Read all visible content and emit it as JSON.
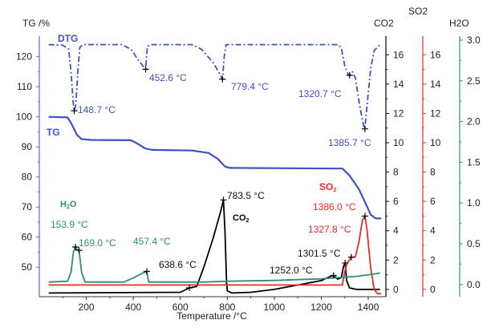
{
  "chart_data": {
    "type": "line",
    "xlabel": "Temperature /°C",
    "ylabel": "TG /%",
    "xlim": [
      0,
      1475
    ],
    "xticks": [
      200,
      400,
      600,
      800,
      1000,
      1200,
      1400
    ],
    "axes": {
      "tg": {
        "label": "TG /%",
        "ylim": [
          40.2,
          125.5
        ],
        "ticks": [
          50,
          60,
          70,
          80,
          90,
          100,
          110,
          120
        ],
        "color": "#3f51c4"
      },
      "co2": {
        "label": "CO2",
        "ylim": [
          -0.5,
          17
        ],
        "ticks": [
          0,
          2,
          4,
          6,
          8,
          10,
          12,
          14,
          16
        ],
        "color": "#000000"
      },
      "so2": {
        "label": "SO2",
        "ylim": [
          -0.5,
          17
        ],
        "ticks": [
          0,
          2,
          4,
          6,
          8,
          10,
          12,
          14,
          16
        ],
        "color": "#ee2a2a"
      },
      "h2o": {
        "label": "H2O",
        "ylim": [
          -0.15,
          3.0
        ],
        "ticks": [
          0,
          0.5,
          1.0,
          1.5,
          2.0,
          2.5,
          3.0
        ],
        "color": "#2e8c7c"
      }
    },
    "series": [
      {
        "name": "DTG",
        "axis": "tg",
        "color": "#3f51c4",
        "style": "dashdot",
        "points": [
          [
            40,
            124
          ],
          [
            100,
            123.8
          ],
          [
            125,
            122.5
          ],
          [
            135,
            115
          ],
          [
            145,
            104
          ],
          [
            149,
            102
          ],
          [
            155,
            104
          ],
          [
            165,
            116
          ],
          [
            172,
            123
          ],
          [
            185,
            124
          ],
          [
            350,
            124
          ],
          [
            390,
            122.5
          ],
          [
            420,
            119
          ],
          [
            445,
            116.5
          ],
          [
            452.6,
            115.8
          ],
          [
            460,
            123.5
          ],
          [
            475,
            124
          ],
          [
            650,
            124
          ],
          [
            690,
            122.5
          ],
          [
            740,
            118
          ],
          [
            770,
            114
          ],
          [
            779.4,
            112.5
          ],
          [
            787,
            120
          ],
          [
            795,
            124
          ],
          [
            1270,
            124
          ],
          [
            1285,
            123
          ],
          [
            1300,
            117
          ],
          [
            1315,
            114
          ],
          [
            1320.7,
            113.8
          ],
          [
            1333,
            115
          ],
          [
            1345,
            113
          ],
          [
            1365,
            103
          ],
          [
            1380,
            97
          ],
          [
            1385.7,
            96
          ],
          [
            1395,
            104
          ],
          [
            1410,
            116
          ],
          [
            1425,
            122
          ],
          [
            1450,
            124
          ]
        ]
      },
      {
        "name": "TG",
        "axis": "tg",
        "color": "#3f51c4",
        "style": "solid",
        "points": [
          [
            40,
            100
          ],
          [
            120,
            99.8
          ],
          [
            135,
            98
          ],
          [
            160,
            94
          ],
          [
            180,
            92.6
          ],
          [
            220,
            92.3
          ],
          [
            390,
            92.2
          ],
          [
            420,
            91
          ],
          [
            450,
            89.5
          ],
          [
            480,
            89
          ],
          [
            650,
            88.8
          ],
          [
            720,
            88
          ],
          [
            760,
            86
          ],
          [
            790,
            83.5
          ],
          [
            810,
            83
          ],
          [
            1290,
            82.8
          ],
          [
            1320,
            80.5
          ],
          [
            1360,
            76
          ],
          [
            1390,
            71
          ],
          [
            1410,
            67.5
          ],
          [
            1430,
            66.3
          ],
          [
            1455,
            66.2
          ]
        ]
      },
      {
        "name": "CO2",
        "axis": "co2",
        "color": "#000000",
        "style": "solid",
        "points": [
          [
            40,
            -0.25
          ],
          [
            600,
            -0.2
          ],
          [
            638.6,
            0.1
          ],
          [
            670,
            0.2
          ],
          [
            700,
            1.5
          ],
          [
            740,
            3.5
          ],
          [
            770,
            5.2
          ],
          [
            783.5,
            6.1
          ],
          [
            790,
            4
          ],
          [
            797,
            0.5
          ],
          [
            800,
            -0.1
          ],
          [
            820,
            -0.25
          ],
          [
            900,
            -0.2
          ],
          [
            1000,
            0
          ],
          [
            1100,
            0.3
          ],
          [
            1200,
            0.6
          ],
          [
            1240,
            0.9
          ],
          [
            1252,
            0.95
          ],
          [
            1270,
            0.7
          ],
          [
            1285,
            0.8
          ],
          [
            1295,
            1.6
          ],
          [
            1301.5,
            1.8
          ],
          [
            1308,
            0.6
          ],
          [
            1320,
            0.1
          ],
          [
            1350,
            0
          ],
          [
            1450,
            0
          ]
        ]
      },
      {
        "name": "SO2",
        "axis": "so2",
        "color": "#ee2a2a",
        "style": "solid",
        "points": [
          [
            40,
            0.3
          ],
          [
            1290,
            0.3
          ],
          [
            1300,
            1.2
          ],
          [
            1310,
            1.8
          ],
          [
            1320,
            2.0
          ],
          [
            1327.8,
            2.2
          ],
          [
            1345,
            2.2
          ],
          [
            1360,
            3.2
          ],
          [
            1375,
            4.7
          ],
          [
            1386,
            5.0
          ],
          [
            1395,
            4.0
          ],
          [
            1410,
            1.5
          ],
          [
            1425,
            0.0
          ],
          [
            1440,
            -0.3
          ],
          [
            1455,
            -0.3
          ]
        ]
      },
      {
        "name": "H2O",
        "axis": "h2o",
        "color": "#2e8c7c",
        "style": "solid",
        "points": [
          [
            40,
            0.03
          ],
          [
            120,
            0.04
          ],
          [
            135,
            0.15
          ],
          [
            145,
            0.4
          ],
          [
            153.9,
            0.46
          ],
          [
            162,
            0.43
          ],
          [
            169,
            0.42
          ],
          [
            180,
            0.15
          ],
          [
            195,
            0.03
          ],
          [
            360,
            0.03
          ],
          [
            400,
            0.08
          ],
          [
            440,
            0.14
          ],
          [
            457.4,
            0.16
          ],
          [
            465,
            0.03
          ],
          [
            700,
            0.03
          ],
          [
            800,
            0.04
          ],
          [
            1000,
            0.05
          ],
          [
            1200,
            0.07
          ],
          [
            1300,
            0.09
          ],
          [
            1350,
            0.1
          ],
          [
            1400,
            0.12
          ],
          [
            1450,
            0.14
          ]
        ]
      }
    ],
    "annotations": [
      {
        "text": "148.7 °C",
        "series": "DTG",
        "x": 148.7,
        "y": 102,
        "color": "#3f51c4"
      },
      {
        "text": "452.6 °C",
        "series": "DTG",
        "x": 452.6,
        "y": 115.8,
        "color": "#3f51c4"
      },
      {
        "text": "779.4 °C",
        "series": "DTG",
        "x": 779.4,
        "y": 112.5,
        "color": "#3f51c4"
      },
      {
        "text": "1320.7 °C",
        "series": "DTG",
        "x": 1320.7,
        "y": 113.8,
        "color": "#3f51c4"
      },
      {
        "text": "1385.7 °C",
        "series": "DTG",
        "x": 1385.7,
        "y": 96,
        "color": "#3f51c4"
      },
      {
        "text": "153.9 °C",
        "series": "H2O",
        "x": 153.9,
        "y": 0.46,
        "color": "#2e8c7c"
      },
      {
        "text": "169.0 °C",
        "series": "H2O",
        "x": 169.0,
        "y": 0.42,
        "color": "#2e8c7c"
      },
      {
        "text": "457.4 °C",
        "series": "H2O",
        "x": 457.4,
        "y": 0.16,
        "color": "#2e8c7c"
      },
      {
        "text": "638.6 °C",
        "series": "CO2",
        "x": 638.6,
        "y": 0.1,
        "color": "#000000"
      },
      {
        "text": "783.5 °C",
        "series": "CO2",
        "x": 783.5,
        "y": 6.1,
        "color": "#000000"
      },
      {
        "text": "1252.0 °C",
        "series": "CO2",
        "x": 1252.0,
        "y": 0.95,
        "color": "#000000"
      },
      {
        "text": "1301.5 °C",
        "series": "CO2",
        "x": 1301.5,
        "y": 1.8,
        "color": "#000000"
      },
      {
        "text": "1327.8 °C",
        "series": "SO2",
        "x": 1327.8,
        "y": 2.2,
        "color": "#ee2a2a"
      },
      {
        "text": "1386.0 °C",
        "series": "SO2",
        "x": 1386.0,
        "y": 5.0,
        "color": "#ee2a2a"
      }
    ],
    "curve_labels": {
      "dtg": "DTG",
      "tg": "TG",
      "h2o": "H",
      "h2o_sub": "2",
      "h2o_end": "O",
      "co2": "CO",
      "co2_sub": "2",
      "so2": "SO",
      "so2_sub": "2"
    }
  }
}
